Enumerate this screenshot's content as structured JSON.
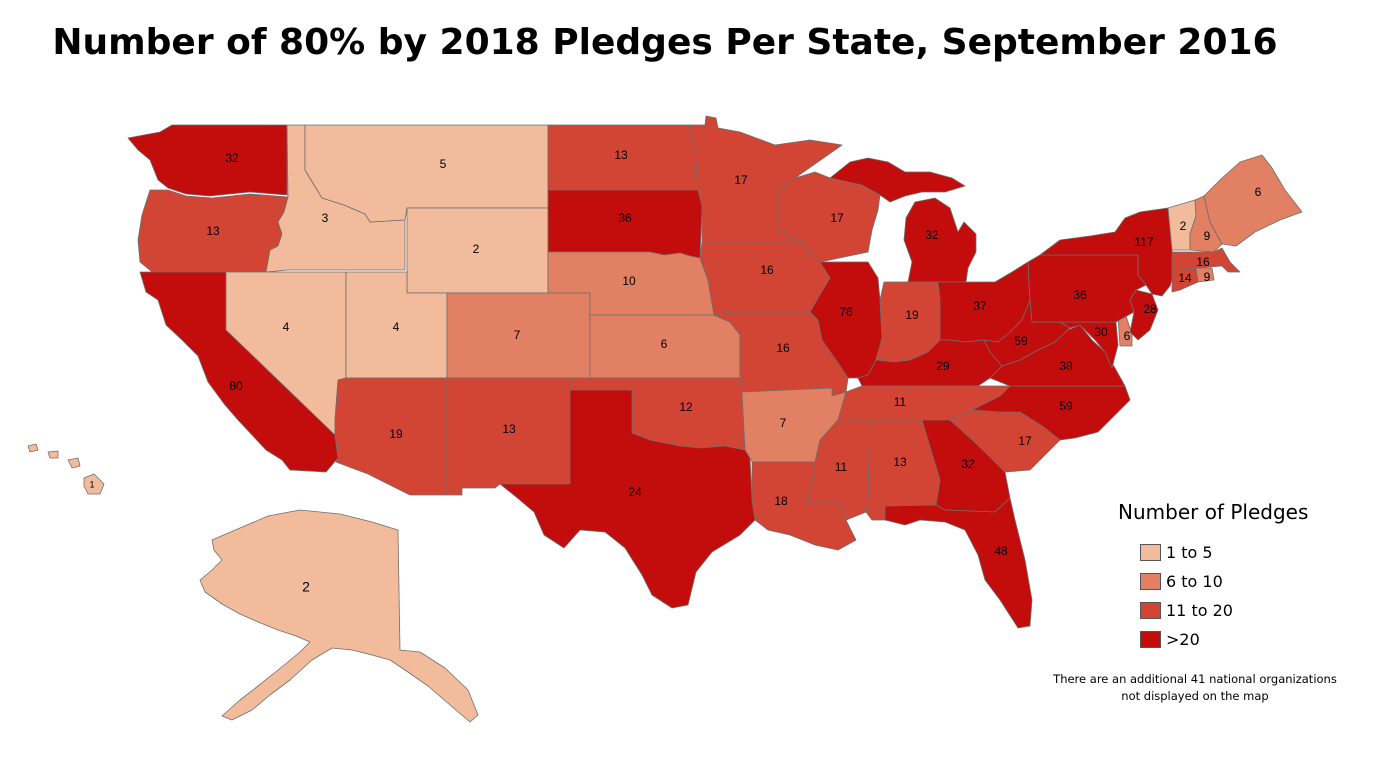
{
  "title": "Number of 80% by 2018 Pledges Per State, September 2016",
  "legend": {
    "title": "Number of Pledges",
    "items": [
      {
        "label": "1 to 5",
        "color": "#f2bc9c"
      },
      {
        "label": "6 to 10",
        "color": "#e28064"
      },
      {
        "label": "11 to 20",
        "color": "#d24535"
      },
      {
        "label": ">20",
        "color": "#c30c0c"
      }
    ]
  },
  "note": [
    "There are an additional 41 national organizations",
    "not displayed on the map"
  ],
  "states": [
    {
      "id": "WA",
      "value": "32"
    },
    {
      "id": "OR",
      "value": "13"
    },
    {
      "id": "CA",
      "value": "80"
    },
    {
      "id": "ID",
      "value": "3"
    },
    {
      "id": "NV",
      "value": "4"
    },
    {
      "id": "MT",
      "value": "5"
    },
    {
      "id": "WY",
      "value": "2"
    },
    {
      "id": "UT",
      "value": "4"
    },
    {
      "id": "AZ",
      "value": "19"
    },
    {
      "id": "CO",
      "value": "7"
    },
    {
      "id": "NM",
      "value": "13"
    },
    {
      "id": "ND",
      "value": "13"
    },
    {
      "id": "SD",
      "value": "36"
    },
    {
      "id": "NE",
      "value": "10"
    },
    {
      "id": "KS",
      "value": "6"
    },
    {
      "id": "OK",
      "value": "12"
    },
    {
      "id": "TX",
      "value": "24"
    },
    {
      "id": "MN",
      "value": "17"
    },
    {
      "id": "IA",
      "value": "16"
    },
    {
      "id": "MO",
      "value": "16"
    },
    {
      "id": "AR",
      "value": "7"
    },
    {
      "id": "LA",
      "value": "18"
    },
    {
      "id": "WI",
      "value": "17"
    },
    {
      "id": "IL",
      "value": "76"
    },
    {
      "id": "MI",
      "value": "32"
    },
    {
      "id": "IN",
      "value": "19"
    },
    {
      "id": "OH",
      "value": "37"
    },
    {
      "id": "KY",
      "value": "29"
    },
    {
      "id": "TN",
      "value": "11"
    },
    {
      "id": "MS",
      "value": "11"
    },
    {
      "id": "AL",
      "value": "13"
    },
    {
      "id": "GA",
      "value": "32"
    },
    {
      "id": "FL",
      "value": "48"
    },
    {
      "id": "SC",
      "value": "17"
    },
    {
      "id": "NC",
      "value": "59"
    },
    {
      "id": "VA",
      "value": "38"
    },
    {
      "id": "WV",
      "value": "59"
    },
    {
      "id": "MD",
      "value": "30"
    },
    {
      "id": "DE",
      "value": "6"
    },
    {
      "id": "NJ",
      "value": "28"
    },
    {
      "id": "PA",
      "value": "36"
    },
    {
      "id": "NY",
      "value": "117"
    },
    {
      "id": "VT",
      "value": "2"
    },
    {
      "id": "NH",
      "value": "9"
    },
    {
      "id": "ME",
      "value": "6"
    },
    {
      "id": "MA",
      "value": "16"
    },
    {
      "id": "CT",
      "value": "14"
    },
    {
      "id": "RI",
      "value": "9"
    },
    {
      "id": "AK",
      "value": "2"
    },
    {
      "id": "HI",
      "value": "1"
    }
  ]
}
